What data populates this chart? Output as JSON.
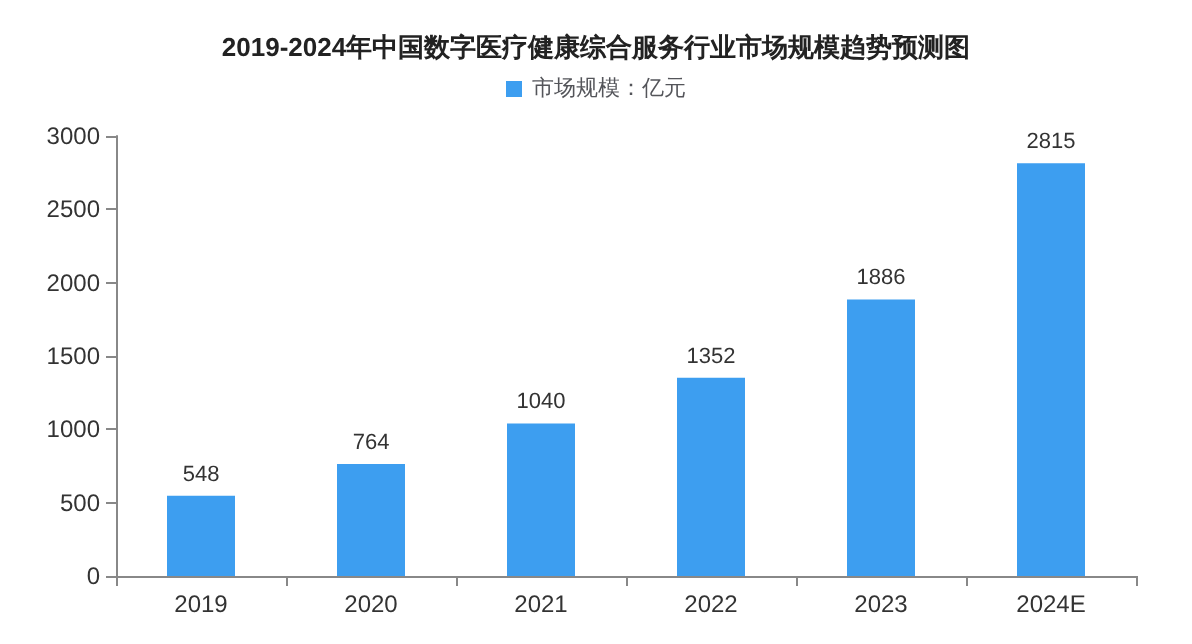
{
  "chart_data": {
    "type": "bar",
    "title": "2019-2024年中国数字医疗健康综合服务行业市场规模趋势预测图",
    "categories": [
      "2019",
      "2020",
      "2021",
      "2022",
      "2023",
      "2024E"
    ],
    "series": [
      {
        "name": "市场规模：亿元",
        "color": "#3d9ef0",
        "values": [
          548,
          764,
          1040,
          1352,
          1886,
          2815
        ]
      }
    ],
    "ylim": [
      0,
      3000
    ],
    "yticks": [
      0,
      500,
      1000,
      1500,
      2000,
      2500,
      3000
    ],
    "data_labels": true,
    "legend": "top",
    "grid": false
  }
}
